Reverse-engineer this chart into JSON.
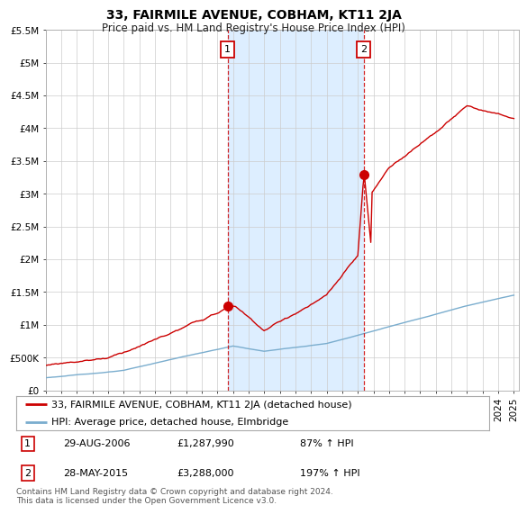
{
  "title": "33, FAIRMILE AVENUE, COBHAM, KT11 2JA",
  "subtitle": "Price paid vs. HM Land Registry's House Price Index (HPI)",
  "ylabel_ticks": [
    "£0",
    "£500K",
    "£1M",
    "£1.5M",
    "£2M",
    "£2.5M",
    "£3M",
    "£3.5M",
    "£4M",
    "£4.5M",
    "£5M",
    "£5.5M"
  ],
  "ylim": [
    0,
    5500000
  ],
  "xlim_start": 1995,
  "xlim_end": 2025.3,
  "line1_color": "#cc0000",
  "line2_color": "#7aadce",
  "shade_color": "#ddeeff",
  "marker_color": "#cc0000",
  "vline_color": "#cc0000",
  "grid_color": "#cccccc",
  "bg_color": "#ffffff",
  "purchase1_date": 2006.66,
  "purchase1_price": 1287990,
  "purchase2_date": 2015.37,
  "purchase2_price": 3288000,
  "legend_line1": "33, FAIRMILE AVENUE, COBHAM, KT11 2JA (detached house)",
  "legend_line2": "HPI: Average price, detached house, Elmbridge",
  "annotation1_date": "29-AUG-2006",
  "annotation1_price": "£1,287,990",
  "annotation1_hpi": "87% ↑ HPI",
  "annotation2_date": "28-MAY-2015",
  "annotation2_price": "£3,288,000",
  "annotation2_hpi": "197% ↑ HPI",
  "footer": "Contains HM Land Registry data © Crown copyright and database right 2024.\nThis data is licensed under the Open Government Licence v3.0.",
  "title_fontsize": 10,
  "subtitle_fontsize": 8.5,
  "tick_fontsize": 7.5,
  "legend_fontsize": 8,
  "annotation_fontsize": 8,
  "footer_fontsize": 6.5
}
